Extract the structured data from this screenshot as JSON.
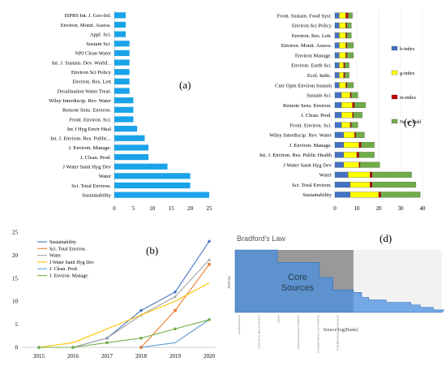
{
  "colors": {
    "bar_a": "#1aa3e8",
    "b_index": "#4472c4",
    "g_index": "#ffff00",
    "m_index": "#c00000",
    "no_of_publ": "#70ad47",
    "line_sustain": "#4472c4",
    "line_sci": "#ed7d31",
    "line_water": "#a5a5a5",
    "line_jwater": "#ffc000",
    "line_jclean": "#5b9bd5",
    "line_jenv": "#70ad47",
    "core_band": "#999999",
    "brad_area": "#4a90e2"
  },
  "chart_data": [
    {
      "type": "bar",
      "orientation": "horizontal",
      "panel_label": "(a)",
      "categories": [
        "ISPRS Int. J. Geo-Inf.",
        "Environ. Monit. Assess.",
        "Appl. Sci.",
        "Sustain Sci.",
        "NPJ Clean Water",
        "Int. J. Sustain. Dev. World...",
        "Environ Sci Policy",
        "Environ. Res. Lett",
        "Desalination Water Treat.",
        "Wiley Interdiscip. Rev. Water",
        "Remote Sens. Environ.",
        "Front. Environ. Sci.",
        "Int J Hyg Envir Heal",
        "Int. J. Environ. Res. Public...",
        "J. Environ. Manage.",
        "J. Clean. Prod.",
        "J Water Sanit Hyg Dev",
        "Water",
        "Sci. Total Environ.",
        "Sustainability"
      ],
      "values": [
        3,
        3,
        3,
        4,
        4,
        4,
        4,
        4,
        4,
        5,
        5,
        5,
        6,
        8,
        9,
        9,
        14,
        20,
        20,
        25
      ],
      "xlim": [
        0,
        25
      ],
      "xticks": [
        "0",
        "5",
        "10",
        "15",
        "20",
        "25"
      ]
    },
    {
      "type": "line",
      "panel_label": "(b)",
      "x": [
        "2015",
        "2016",
        "2017",
        "2018",
        "2019",
        "2020"
      ],
      "ylim": [
        0,
        25
      ],
      "yticks": [
        "0",
        "5",
        "10",
        "15",
        "20",
        "25"
      ],
      "series": [
        {
          "name": "Sustainability",
          "values": [
            0,
            0,
            2,
            8,
            12,
            23
          ]
        },
        {
          "name": "Sci. Total Environ.",
          "values": [
            null,
            null,
            null,
            0,
            8,
            18
          ]
        },
        {
          "name": "Water",
          "values": [
            0,
            0,
            2,
            7,
            11,
            19
          ]
        },
        {
          "name": "J Water Sanit Hyg Dev",
          "values": [
            0,
            1,
            4,
            7,
            10,
            14
          ]
        },
        {
          "name": "J. Clean. Prod.",
          "values": [
            null,
            null,
            null,
            0,
            1,
            6
          ]
        },
        {
          "name": "J. Environ. Manage.",
          "values": [
            0,
            0,
            1,
            2,
            4,
            6
          ]
        }
      ]
    },
    {
      "type": "bar",
      "orientation": "horizontal",
      "stacked": true,
      "panel_label": "(c)",
      "categories": [
        "Front. Sustain. Food Syst.",
        "Environ Sci Policy",
        "Environ. Res. Lett.",
        "Environ. Monit. Assess.",
        "Environ Manage.",
        "Environ. Earth Sci.",
        "Ecol. Indic.",
        "Curr Opin Environ Sustain",
        "Sustain Sci.",
        "Remote Sens. Environ.",
        "J. Clean. Prod.",
        "Front. Environ. Sci.",
        "Wiley Interdiscip. Rev. Water",
        "J. Environ. Manage.",
        "Int. J. Environ. Res. Public Health",
        "J Water Sanit Hyg Dev",
        "Water",
        "Sci. Total Environ.",
        "Sustainability"
      ],
      "series": [
        {
          "name": "b-index",
          "values": [
            2,
            2,
            2,
            2,
            2,
            2,
            2,
            2,
            3,
            3,
            3,
            3,
            4,
            4,
            4,
            4,
            6,
            7,
            7
          ]
        },
        {
          "name": "g-index",
          "values": [
            3,
            3,
            3,
            3,
            3,
            2,
            2,
            3,
            4,
            5,
            5,
            4,
            5,
            7,
            6,
            7,
            10,
            9,
            13
          ]
        },
        {
          "name": "m-index",
          "values": [
            1,
            0.5,
            0.5,
            0.5,
            0.5,
            0.5,
            0.5,
            0.5,
            0.5,
            1,
            0.5,
            0.5,
            0.5,
            1,
            1,
            0.5,
            1,
            1,
            1
          ]
        },
        {
          "name": "No of Publ",
          "values": [
            2,
            2,
            2,
            3,
            3,
            2,
            2,
            3,
            3,
            5,
            4,
            3,
            4,
            6,
            7,
            9,
            18,
            20,
            18
          ]
        }
      ],
      "xlim": [
        0,
        40
      ],
      "xticks": [
        "0",
        "10",
        "20",
        "30",
        "40"
      ],
      "legend_position": "right"
    },
    {
      "type": "area",
      "panel_label": "(d)",
      "title": "Bradford's Law",
      "ylabel": "Articles",
      "xlabel": "Source log(Rank)",
      "annotation": "Core\nSources",
      "core_label_lines": [
        "Core",
        "Sources"
      ],
      "x_source_labels": [
        "SUSTAINABILITY",
        "SCIENCE OF THE TOTAL ENVI",
        "WATER",
        "JOURNAL OF WATER SANITATI",
        "JOURNAL OF CLEANER PRODUCT",
        "JOURNAL OF ENVIRONMENTAL"
      ],
      "values": [
        25,
        20,
        20,
        14,
        9,
        9,
        8,
        6,
        5,
        5,
        5,
        4,
        4,
        4,
        4,
        4,
        4,
        3,
        3,
        3,
        2,
        2,
        2,
        2,
        2,
        1,
        1,
        1,
        1,
        1
      ],
      "core_count": 6
    }
  ]
}
